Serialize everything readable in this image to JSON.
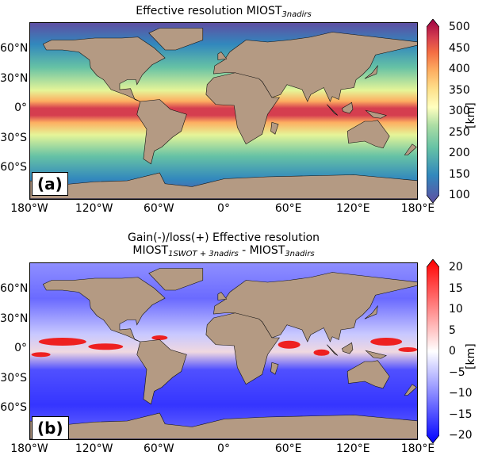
{
  "panel_a": {
    "title_main": "Effective resolution MIOST",
    "title_sub": "3nadirs",
    "label": "(a)",
    "colorbar": {
      "ticks": [
        "500",
        "450",
        "400",
        "350",
        "300",
        "250",
        "200",
        "150",
        "100"
      ],
      "min": 100,
      "max": 500,
      "unit": "[km]",
      "colormap": "Spectral_r"
    }
  },
  "panel_b": {
    "title_line1": "Gain(-)/loss(+) Effective resolution",
    "title_a": "MIOST",
    "title_a_sub": "1SWOT + 3nadirs",
    "title_sep": " - ",
    "title_b": "MIOST",
    "title_b_sub": "3nadirs",
    "label": "(b)",
    "colorbar": {
      "ticks": [
        "20",
        "15",
        "10",
        "5",
        "0",
        "−5",
        "−10",
        "−15",
        "−20"
      ],
      "min": -20,
      "max": 20,
      "unit": "[km]",
      "colormap": "bwr"
    }
  },
  "axes": {
    "lat_labels": [
      "60°N",
      "30°N",
      "0°",
      "30°S",
      "60°S"
    ],
    "lon_labels": [
      "180°W",
      "120°W",
      "60°W",
      "0°",
      "60°E",
      "120°E",
      "180°E"
    ]
  },
  "colors": {
    "land": "#b49a83"
  }
}
